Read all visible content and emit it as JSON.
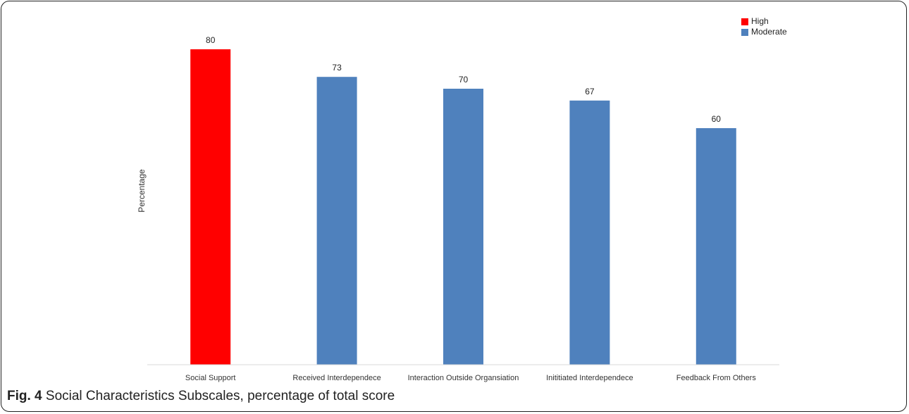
{
  "chart_data": {
    "type": "bar",
    "categories": [
      "Social Support",
      "Received Interdependece",
      "Interaction Outside Organsiation",
      "Inititiated Interdependece",
      "Feedback From Others"
    ],
    "values": [
      80,
      73,
      70,
      67,
      60
    ],
    "levels": [
      "High",
      "Moderate",
      "Moderate",
      "Moderate",
      "Moderate"
    ],
    "legend": [
      {
        "name": "High",
        "color": "#ff0000"
      },
      {
        "name": "Moderate",
        "color": "#4f81bd"
      }
    ],
    "title": "",
    "xlabel": "",
    "ylabel": "Percentage",
    "ylim": [
      0,
      100
    ],
    "grid": false,
    "legend_position": "top-right",
    "data_labels": true
  },
  "caption": {
    "label": "Fig. 4",
    "text": "Social Characteristics Subscales, percentage of total score"
  },
  "colors": {
    "high": "#ff0000",
    "moderate": "#4f81bd",
    "axis": "#d9d9d9",
    "text": "#222222"
  }
}
